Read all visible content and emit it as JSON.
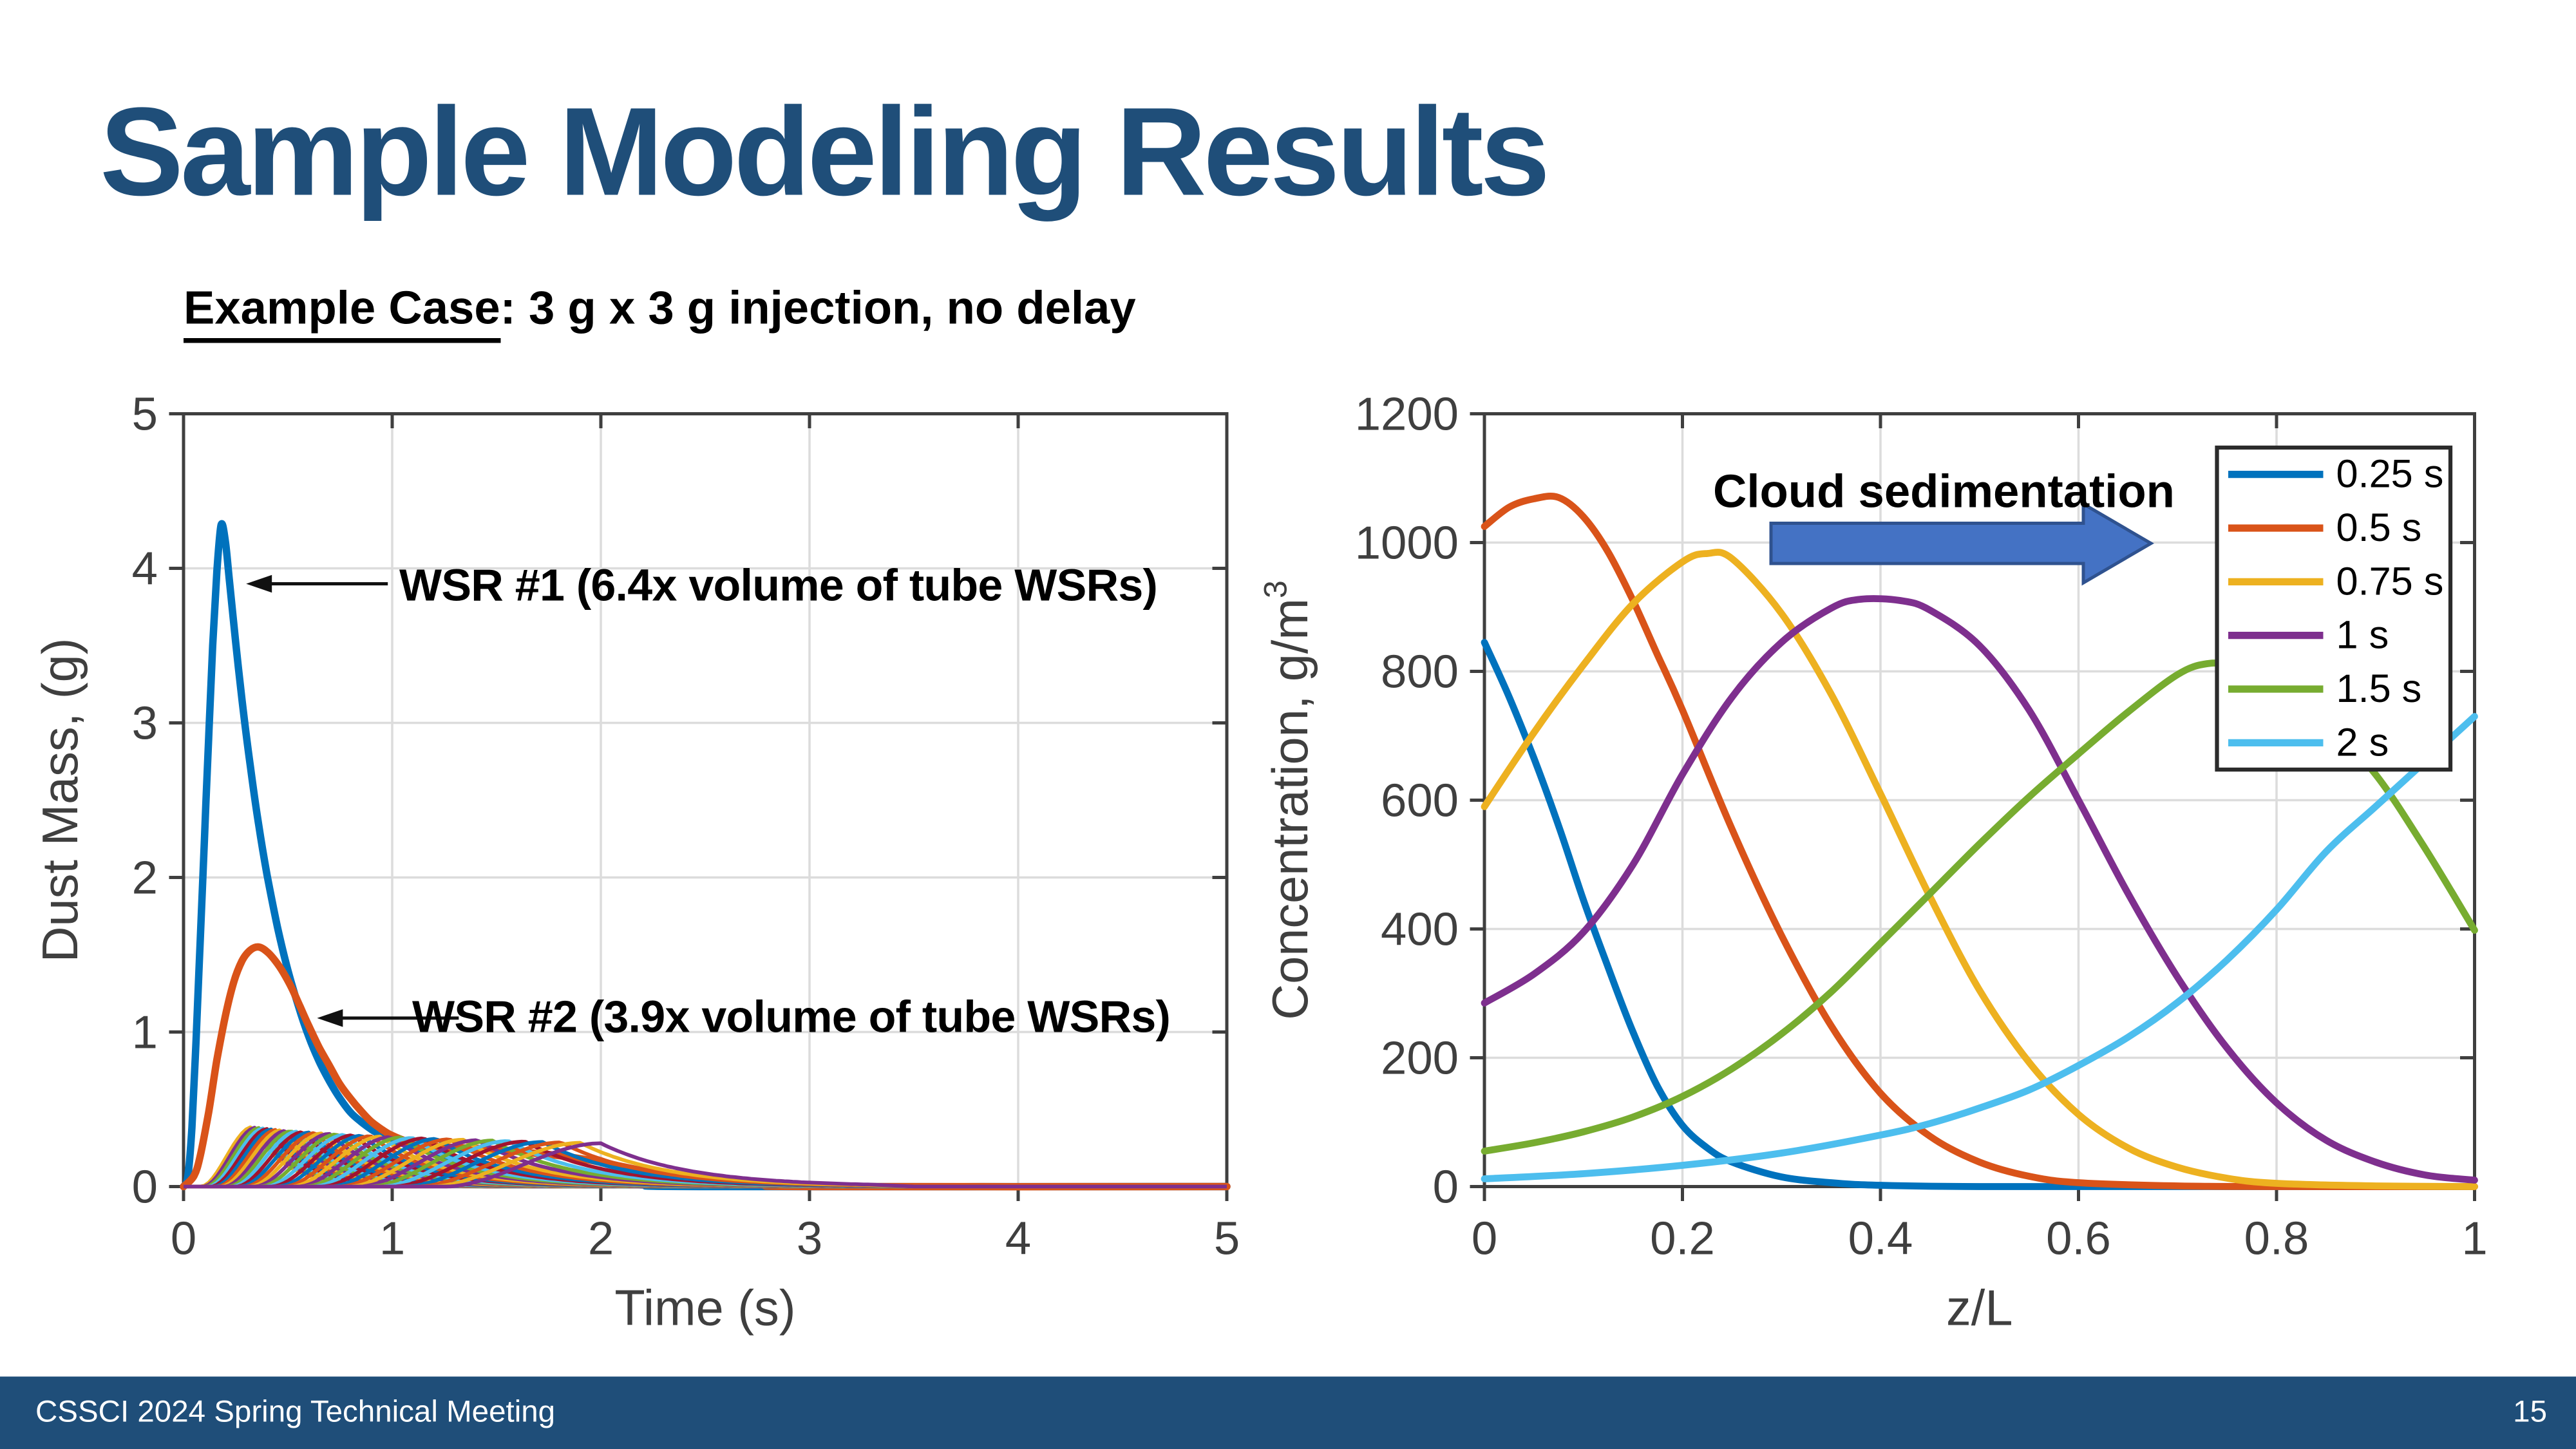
{
  "slide": {
    "title": "Sample Modeling Results",
    "subtitle_label": "Example Case",
    "subtitle_rest": ": 3 g x 3 g injection, no delay",
    "footer_text": "CSSCI 2024 Spring Technical Meeting",
    "page_number": "15",
    "colors": {
      "title": "#1F4E79",
      "footer_bg": "#1F4E79",
      "footer_text": "#FFFFFF",
      "arrow_fill": "#4472C4",
      "arrow_border": "#2F528F",
      "axis": "#3F3F3F",
      "grid": "#DCDCDC"
    }
  },
  "chart_data": [
    {
      "type": "line",
      "title": "",
      "xlabel": "Time (s)",
      "ylabel": "Dust Mass, (g)",
      "xlim": [
        0,
        5
      ],
      "ylim": [
        0,
        5
      ],
      "xticks": [
        0,
        1,
        2,
        3,
        4,
        5
      ],
      "xtick_labels": [
        "0",
        "1",
        "2",
        "3",
        "4",
        "5"
      ],
      "yticks": [
        0,
        1,
        2,
        3,
        4,
        5
      ],
      "ytick_labels": [
        "0",
        "1",
        "2",
        "3",
        "4",
        "5"
      ],
      "grid": true,
      "legend": "none",
      "annotations": [
        {
          "text": "WSR #1 (6.4x volume of tube WSRs)",
          "arrow_tip": [
            0.3,
            3.9
          ]
        },
        {
          "text": "WSR #2 (3.9x volume of tube WSRs)",
          "arrow_tip": [
            0.64,
            1.09
          ]
        }
      ],
      "series": [
        {
          "name": "WSR #1",
          "color": "#0072BD",
          "points": [
            [
              0,
              0
            ],
            [
              0.02,
              0.06
            ],
            [
              0.04,
              0.38
            ],
            [
              0.06,
              0.95
            ],
            [
              0.08,
              1.6
            ],
            [
              0.1,
              2.25
            ],
            [
              0.12,
              2.9
            ],
            [
              0.14,
              3.5
            ],
            [
              0.16,
              3.98
            ],
            [
              0.18,
              4.28
            ],
            [
              0.2,
              4.18
            ],
            [
              0.22,
              3.92
            ],
            [
              0.25,
              3.52
            ],
            [
              0.28,
              3.15
            ],
            [
              0.32,
              2.72
            ],
            [
              0.36,
              2.34
            ],
            [
              0.4,
              2.02
            ],
            [
              0.45,
              1.68
            ],
            [
              0.5,
              1.4
            ],
            [
              0.55,
              1.17
            ],
            [
              0.6,
              0.97
            ],
            [
              0.65,
              0.81
            ],
            [
              0.7,
              0.68
            ],
            [
              0.75,
              0.57
            ],
            [
              0.8,
              0.48
            ],
            [
              0.85,
              0.42
            ],
            [
              0.9,
              0.37
            ],
            [
              0.95,
              0.33
            ],
            [
              1,
              0.3
            ],
            [
              1.1,
              0.26
            ],
            [
              1.2,
              0.22
            ],
            [
              1.35,
              0.16
            ],
            [
              1.5,
              0.11
            ],
            [
              1.7,
              0.06
            ],
            [
              1.9,
              0.03
            ],
            [
              2.2,
              0.01
            ],
            [
              2.5,
              0
            ],
            [
              5,
              0
            ]
          ]
        },
        {
          "name": "WSR #2",
          "color": "#D95319",
          "points": [
            [
              0,
              0
            ],
            [
              0.05,
              0.07
            ],
            [
              0.08,
              0.2
            ],
            [
              0.12,
              0.48
            ],
            [
              0.16,
              0.82
            ],
            [
              0.2,
              1.1
            ],
            [
              0.24,
              1.32
            ],
            [
              0.28,
              1.46
            ],
            [
              0.32,
              1.53
            ],
            [
              0.36,
              1.55
            ],
            [
              0.4,
              1.52
            ],
            [
              0.44,
              1.46
            ],
            [
              0.48,
              1.38
            ],
            [
              0.52,
              1.28
            ],
            [
              0.56,
              1.16
            ],
            [
              0.6,
              1.04
            ],
            [
              0.65,
              0.9
            ],
            [
              0.7,
              0.78
            ],
            [
              0.75,
              0.66
            ],
            [
              0.8,
              0.57
            ],
            [
              0.85,
              0.49
            ],
            [
              0.9,
              0.42
            ],
            [
              0.95,
              0.37
            ],
            [
              1,
              0.33
            ],
            [
              1.1,
              0.28
            ],
            [
              1.2,
              0.26
            ],
            [
              1.35,
              0.25
            ],
            [
              1.5,
              0.24
            ],
            [
              1.65,
              0.22
            ],
            [
              1.8,
              0.2
            ],
            [
              1.95,
              0.17
            ],
            [
              2.1,
              0.13
            ],
            [
              2.25,
              0.09
            ],
            [
              2.4,
              0.06
            ],
            [
              2.6,
              0.03
            ],
            [
              2.8,
              0.01
            ],
            [
              3,
              0
            ],
            [
              5,
              0
            ]
          ]
        }
      ],
      "tube_wsr_bundle": {
        "description": "Ensemble of individual tube WSR dust-mass curves, peaks ~0.28-0.39 g staggered between 0.33 s and 2.0 s, all decaying to 0 by ~3 s",
        "count": 37,
        "peak_time_range": [
          0.33,
          2.0
        ],
        "peak_value_range": [
          0.385,
          0.28
        ],
        "colors": [
          "#EDB120",
          "#7E2F8E",
          "#77AC30",
          "#4DBEEE",
          "#A2142F",
          "#0072BD",
          "#D95319"
        ]
      }
    },
    {
      "type": "line",
      "title": "",
      "xlabel": "z/L",
      "ylabel": "Concentration, g/m",
      "ylabel_superscript": "3",
      "xlim": [
        0,
        1
      ],
      "ylim": [
        0,
        1200
      ],
      "xticks": [
        0,
        0.2,
        0.4,
        0.6,
        0.8,
        1
      ],
      "xtick_labels": [
        "0",
        "0.2",
        "0.4",
        "0.6",
        "0.8",
        "1"
      ],
      "yticks": [
        0,
        200,
        400,
        600,
        800,
        1000,
        1200
      ],
      "ytick_labels": [
        "0",
        "200",
        "400",
        "600",
        "800",
        "1000",
        "1200"
      ],
      "grid": true,
      "legend_position": "top-right",
      "annotation": {
        "text": "Cloud sedimentation"
      },
      "series": [
        {
          "name": "0.25 s",
          "color": "#0072BD",
          "points": [
            [
              0,
              845
            ],
            [
              0.025,
              760
            ],
            [
              0.05,
              665
            ],
            [
              0.075,
              560
            ],
            [
              0.1,
              445
            ],
            [
              0.125,
              340
            ],
            [
              0.15,
              240
            ],
            [
              0.175,
              155
            ],
            [
              0.2,
              95
            ],
            [
              0.225,
              60
            ],
            [
              0.25,
              38
            ],
            [
              0.3,
              15
            ],
            [
              0.35,
              6
            ],
            [
              0.4,
              2
            ],
            [
              0.5,
              0
            ],
            [
              0.75,
              0
            ],
            [
              1,
              0
            ]
          ]
        },
        {
          "name": "0.5 s",
          "color": "#D95319",
          "points": [
            [
              0,
              1025
            ],
            [
              0.025,
              1055
            ],
            [
              0.05,
              1068
            ],
            [
              0.075,
              1070
            ],
            [
              0.1,
              1040
            ],
            [
              0.125,
              985
            ],
            [
              0.15,
              910
            ],
            [
              0.175,
              825
            ],
            [
              0.2,
              740
            ],
            [
              0.25,
              555
            ],
            [
              0.3,
              390
            ],
            [
              0.35,
              250
            ],
            [
              0.4,
              145
            ],
            [
              0.45,
              78
            ],
            [
              0.5,
              38
            ],
            [
              0.55,
              16
            ],
            [
              0.6,
              6
            ],
            [
              0.7,
              1
            ],
            [
              0.8,
              0
            ],
            [
              1,
              0
            ]
          ]
        },
        {
          "name": "0.75 s",
          "color": "#EDB120",
          "points": [
            [
              0,
              590
            ],
            [
              0.05,
              705
            ],
            [
              0.1,
              810
            ],
            [
              0.15,
              905
            ],
            [
              0.2,
              970
            ],
            [
              0.225,
              983
            ],
            [
              0.25,
              975
            ],
            [
              0.3,
              890
            ],
            [
              0.35,
              765
            ],
            [
              0.4,
              610
            ],
            [
              0.45,
              450
            ],
            [
              0.5,
              305
            ],
            [
              0.55,
              193
            ],
            [
              0.6,
              112
            ],
            [
              0.65,
              60
            ],
            [
              0.7,
              30
            ],
            [
              0.75,
              13
            ],
            [
              0.8,
              5
            ],
            [
              0.9,
              1
            ],
            [
              1,
              0
            ]
          ]
        },
        {
          "name": "1 s",
          "color": "#7E2F8E",
          "points": [
            [
              0,
              285
            ],
            [
              0.05,
              330
            ],
            [
              0.1,
              395
            ],
            [
              0.15,
              500
            ],
            [
              0.2,
              640
            ],
            [
              0.25,
              760
            ],
            [
              0.3,
              845
            ],
            [
              0.35,
              898
            ],
            [
              0.38,
              912
            ],
            [
              0.42,
              910
            ],
            [
              0.45,
              895
            ],
            [
              0.5,
              840
            ],
            [
              0.55,
              740
            ],
            [
              0.6,
              600
            ],
            [
              0.65,
              455
            ],
            [
              0.7,
              325
            ],
            [
              0.75,
              215
            ],
            [
              0.8,
              130
            ],
            [
              0.85,
              72
            ],
            [
              0.9,
              38
            ],
            [
              0.95,
              18
            ],
            [
              1,
              10
            ]
          ]
        },
        {
          "name": "1.5 s",
          "color": "#77AC30",
          "points": [
            [
              0,
              55
            ],
            [
              0.05,
              68
            ],
            [
              0.1,
              85
            ],
            [
              0.15,
              108
            ],
            [
              0.2,
              140
            ],
            [
              0.25,
              183
            ],
            [
              0.3,
              237
            ],
            [
              0.35,
              302
            ],
            [
              0.4,
              378
            ],
            [
              0.45,
              455
            ],
            [
              0.5,
              532
            ],
            [
              0.55,
              605
            ],
            [
              0.6,
              672
            ],
            [
              0.65,
              737
            ],
            [
              0.7,
              795
            ],
            [
              0.73,
              812
            ],
            [
              0.76,
              808
            ],
            [
              0.8,
              785
            ],
            [
              0.85,
              722
            ],
            [
              0.9,
              640
            ],
            [
              0.95,
              525
            ],
            [
              1,
              398
            ]
          ]
        },
        {
          "name": "2 s",
          "color": "#4DBEEE",
          "points": [
            [
              0,
              12
            ],
            [
              0.1,
              20
            ],
            [
              0.2,
              33
            ],
            [
              0.3,
              52
            ],
            [
              0.4,
              80
            ],
            [
              0.45,
              98
            ],
            [
              0.5,
              122
            ],
            [
              0.55,
              150
            ],
            [
              0.6,
              188
            ],
            [
              0.65,
              232
            ],
            [
              0.7,
              286
            ],
            [
              0.75,
              352
            ],
            [
              0.8,
              430
            ],
            [
              0.85,
              520
            ],
            [
              0.9,
              590
            ],
            [
              0.95,
              660
            ],
            [
              1,
              730
            ]
          ]
        }
      ]
    }
  ]
}
